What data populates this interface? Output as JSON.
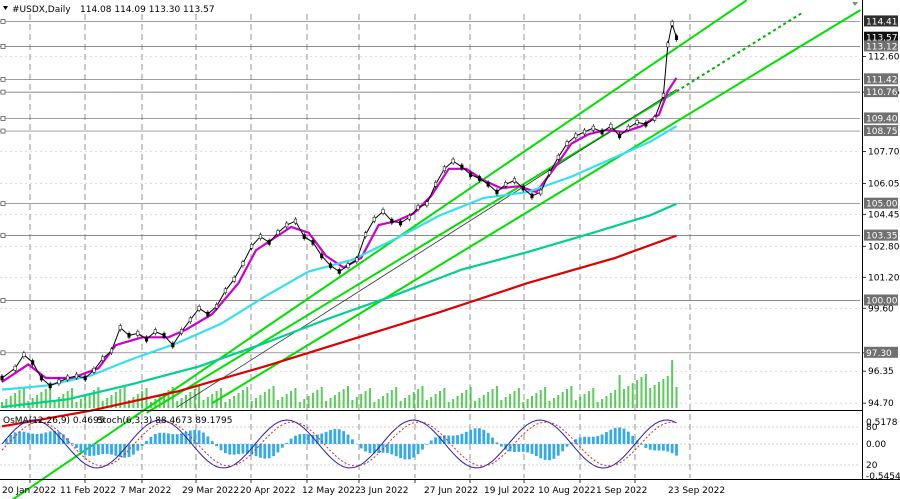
{
  "header": {
    "symbol": "#USDX,Daily",
    "ohlc": "114.08 114.09 113.30 113.57"
  },
  "osc_header": {
    "osma": "OsMA(12,26,9) 0.4695",
    "stoch": "Stoch(6,3,3) 88.4673 89.1795"
  },
  "chart_data": {
    "type": "line",
    "instrument": "#USDX",
    "timeframe": "Daily",
    "price_ticks": [
      112.6,
      110.76,
      107.7,
      106.05,
      104.45,
      102.8,
      101.2,
      99.6,
      97.3,
      96.35,
      94.7
    ],
    "x_labels": [
      "20 Jan 2022",
      "11 Feb 2022",
      "7 Mar 2022",
      "29 Mar 2022",
      "20 Apr 2022",
      "12 May 2022",
      "3 Jun 2022",
      "27 Jun 2022",
      "19 Jul 2022",
      "10 Aug 2022",
      "1 Sep 2022",
      "23 Sep 2022"
    ],
    "price_tags": [
      {
        "value": 114.41,
        "label": "114.41",
        "color": "#2f2f2f"
      },
      {
        "value": 113.57,
        "label": "113.57",
        "color": "#111111"
      },
      {
        "value": 113.12,
        "label": "113.12",
        "color": "#707070"
      },
      {
        "value": 111.42,
        "label": "111.42",
        "color": "#707070"
      },
      {
        "value": 110.76,
        "label": "110.76",
        "color": "#707070"
      },
      {
        "value": 109.4,
        "label": "109.40",
        "color": "#707070"
      },
      {
        "value": 108.75,
        "label": "108.75",
        "color": "#707070"
      },
      {
        "value": 105.0,
        "label": "105.00",
        "color": "#707070"
      },
      {
        "value": 103.35,
        "label": "103.35",
        "color": "#707070"
      },
      {
        "value": 100.0,
        "label": "100.00",
        "color": "#707070"
      },
      {
        "value": 97.3,
        "label": "97.30",
        "color": "#707070"
      }
    ],
    "horizontal_levels": [
      114.41,
      113.12,
      111.42,
      110.76,
      109.4,
      108.75,
      105.0,
      103.35,
      100.0,
      97.3
    ],
    "osc_ticks": [
      {
        "label": "0.5178",
        "row": 0
      },
      {
        "label": "80",
        "row": 1
      },
      {
        "label": "0.00",
        "row": 2
      },
      {
        "label": "20",
        "row": 3
      },
      {
        "label": "-0.5454",
        "row": 4
      }
    ],
    "close_path": [
      [
        0,
        96.0
      ],
      [
        3,
        96.5
      ],
      [
        5,
        97.2
      ],
      [
        7,
        96.8
      ],
      [
        9,
        96.0
      ],
      [
        11,
        95.6
      ],
      [
        13,
        95.8
      ],
      [
        15,
        96.0
      ],
      [
        17,
        96.1
      ],
      [
        19,
        96.0
      ],
      [
        21,
        96.4
      ],
      [
        23,
        97.0
      ],
      [
        25,
        97.4
      ],
      [
        27,
        98.6
      ],
      [
        29,
        98.2
      ],
      [
        31,
        98.3
      ],
      [
        33,
        98.0
      ],
      [
        35,
        98.4
      ],
      [
        37,
        98.2
      ],
      [
        39,
        97.7
      ],
      [
        41,
        98.4
      ],
      [
        43,
        99.0
      ],
      [
        45,
        99.6
      ],
      [
        47,
        99.3
      ],
      [
        49,
        99.7
      ],
      [
        51,
        100.5
      ],
      [
        53,
        101.1
      ],
      [
        55,
        101.9
      ],
      [
        57,
        102.8
      ],
      [
        59,
        103.3
      ],
      [
        61,
        103.0
      ],
      [
        63,
        103.5
      ],
      [
        65,
        103.9
      ],
      [
        67,
        104.1
      ],
      [
        69,
        103.3
      ],
      [
        71,
        103.0
      ],
      [
        73,
        102.3
      ],
      [
        75,
        101.8
      ],
      [
        77,
        101.5
      ],
      [
        79,
        101.8
      ],
      [
        81,
        102.1
      ],
      [
        83,
        103.4
      ],
      [
        85,
        104.2
      ],
      [
        87,
        104.6
      ],
      [
        89,
        104.1
      ],
      [
        91,
        104.0
      ],
      [
        93,
        104.3
      ],
      [
        95,
        104.8
      ],
      [
        97,
        105.0
      ],
      [
        99,
        106.0
      ],
      [
        101,
        106.8
      ],
      [
        103,
        107.2
      ],
      [
        105,
        106.9
      ],
      [
        107,
        106.5
      ],
      [
        109,
        106.3
      ],
      [
        111,
        106.0
      ],
      [
        113,
        105.6
      ],
      [
        115,
        106.0
      ],
      [
        117,
        106.2
      ],
      [
        119,
        105.8
      ],
      [
        121,
        105.4
      ],
      [
        123,
        105.6
      ],
      [
        125,
        106.6
      ],
      [
        127,
        107.4
      ],
      [
        129,
        108.1
      ],
      [
        131,
        108.5
      ],
      [
        133,
        108.7
      ],
      [
        135,
        108.9
      ],
      [
        137,
        108.7
      ],
      [
        139,
        109.0
      ],
      [
        141,
        108.5
      ],
      [
        143,
        108.9
      ],
      [
        145,
        109.2
      ],
      [
        147,
        109.1
      ],
      [
        149,
        109.4
      ],
      [
        151,
        110.6
      ],
      [
        152,
        113.2
      ],
      [
        153,
        114.3
      ],
      [
        154,
        113.57
      ]
    ],
    "series": [
      {
        "name": "MA purple",
        "color": "#cc00cc",
        "points": [
          [
            0,
            95.8
          ],
          [
            6,
            96.7
          ],
          [
            10,
            96.0
          ],
          [
            16,
            96.0
          ],
          [
            22,
            96.5
          ],
          [
            26,
            97.7
          ],
          [
            32,
            98.1
          ],
          [
            38,
            98.1
          ],
          [
            42,
            98.5
          ],
          [
            48,
            99.3
          ],
          [
            54,
            100.9
          ],
          [
            58,
            102.6
          ],
          [
            62,
            103.2
          ],
          [
            66,
            103.8
          ],
          [
            70,
            103.5
          ],
          [
            74,
            102.3
          ],
          [
            78,
            101.7
          ],
          [
            82,
            102.2
          ],
          [
            86,
            103.9
          ],
          [
            90,
            104.1
          ],
          [
            94,
            104.5
          ],
          [
            98,
            105.4
          ],
          [
            102,
            106.8
          ],
          [
            106,
            106.8
          ],
          [
            110,
            106.2
          ],
          [
            114,
            105.8
          ],
          [
            118,
            105.9
          ],
          [
            122,
            105.6
          ],
          [
            126,
            106.8
          ],
          [
            130,
            108.1
          ],
          [
            134,
            108.6
          ],
          [
            138,
            108.8
          ],
          [
            142,
            108.7
          ],
          [
            146,
            109.0
          ],
          [
            150,
            109.6
          ],
          [
            152,
            110.8
          ],
          [
            154,
            111.5
          ]
        ]
      },
      {
        "name": "MA cyan",
        "color": "#33e0f0",
        "points": [
          [
            0,
            95.4
          ],
          [
            10,
            95.6
          ],
          [
            20,
            96.1
          ],
          [
            30,
            97.0
          ],
          [
            40,
            97.8
          ],
          [
            50,
            98.8
          ],
          [
            60,
            100.2
          ],
          [
            70,
            101.5
          ],
          [
            80,
            102.1
          ],
          [
            90,
            103.2
          ],
          [
            100,
            104.4
          ],
          [
            110,
            105.3
          ],
          [
            120,
            105.6
          ],
          [
            130,
            106.4
          ],
          [
            140,
            107.4
          ],
          [
            148,
            108.2
          ],
          [
            154,
            109.0
          ]
        ]
      },
      {
        "name": "MA teal",
        "color": "#00d090",
        "points": [
          [
            0,
            94.5
          ],
          [
            15,
            94.9
          ],
          [
            30,
            95.7
          ],
          [
            45,
            96.6
          ],
          [
            60,
            97.8
          ],
          [
            75,
            99.1
          ],
          [
            90,
            100.3
          ],
          [
            105,
            101.6
          ],
          [
            120,
            102.5
          ],
          [
            135,
            103.5
          ],
          [
            148,
            104.4
          ],
          [
            154,
            105.0
          ]
        ]
      },
      {
        "name": "MA red",
        "color": "#dd0000",
        "points": [
          [
            0,
            93.5
          ],
          [
            20,
            94.3
          ],
          [
            40,
            95.3
          ],
          [
            60,
            96.6
          ],
          [
            80,
            98.0
          ],
          [
            100,
            99.4
          ],
          [
            120,
            100.9
          ],
          [
            140,
            102.2
          ],
          [
            154,
            103.35
          ]
        ]
      }
    ],
    "trend_lines": [
      {
        "color": "#00e000",
        "from": [
          0,
          89.35
        ],
        "to": [
          170,
          115.5
        ]
      },
      {
        "color": "#00e000",
        "from": [
          48,
          94.7
        ],
        "to": [
          196,
          115.0
        ]
      },
      {
        "color": "#00e000",
        "from": [
          33,
          94.2
        ],
        "to": [
          154,
          110.8
        ]
      },
      {
        "color": "#00b000",
        "from": [
          154,
          110.8
        ],
        "to": [
          183,
          114.9
        ],
        "dashed": true
      },
      {
        "color": "#303030",
        "from": [
          40,
          94.5
        ],
        "to": [
          154,
          110.9
        ],
        "thin": true
      }
    ]
  }
}
